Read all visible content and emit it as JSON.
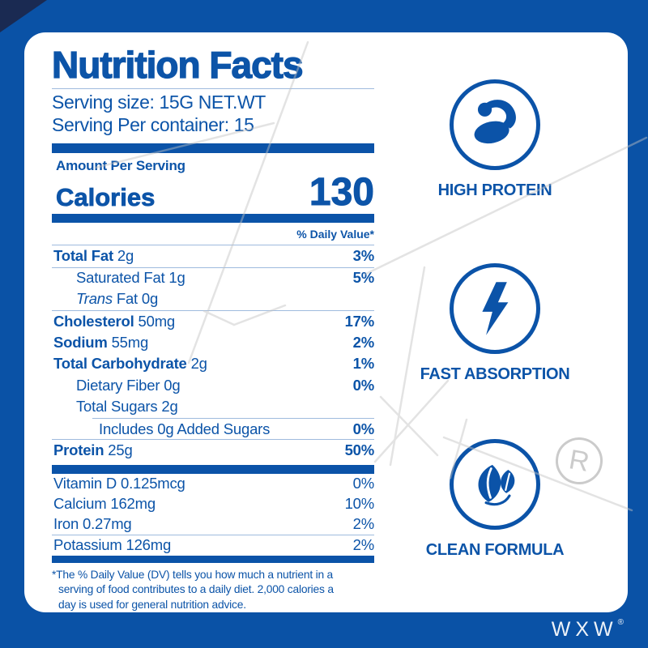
{
  "brand": {
    "logo": "WXW",
    "registered": "®"
  },
  "label": {
    "title": "Nutrition Facts",
    "serving_size": "Serving size: 15G NET.WT",
    "servings_per_container": "Serving Per container: 15",
    "amount_per_serving": "Amount Per Serving",
    "calories_label": "Calories",
    "calories_value": "130",
    "daily_value_header": "% Daily Value*",
    "rows": [
      {
        "segments": [
          {
            "text": "Total Fat",
            "style": "bold"
          },
          {
            "text": " 2g",
            "style": "regular"
          }
        ],
        "value": "3%",
        "value_bold": true,
        "indent": 0,
        "separator_before": "none"
      },
      {
        "segments": [
          {
            "text": "Saturated Fat 1g",
            "style": "regular"
          }
        ],
        "value": "5%",
        "value_bold": true,
        "indent": 1,
        "separator_before": "full"
      },
      {
        "segments": [
          {
            "text": "Trans",
            "style": "italic"
          },
          {
            "text": " Fat 0g",
            "style": "regular"
          }
        ],
        "value": "",
        "value_bold": false,
        "indent": 1,
        "separator_before": "none"
      },
      {
        "segments": [
          {
            "text": "Cholesterol",
            "style": "bold"
          },
          {
            "text": " 50mg",
            "style": "regular"
          }
        ],
        "value": "17%",
        "value_bold": true,
        "indent": 0,
        "separator_before": "full"
      },
      {
        "segments": [
          {
            "text": "Sodium",
            "style": "bold"
          },
          {
            "text": " 55mg",
            "style": "regular"
          }
        ],
        "value": "2%",
        "value_bold": true,
        "indent": 0,
        "separator_before": "none"
      },
      {
        "segments": [
          {
            "text": "Total Carbohydrate",
            "style": "bold"
          },
          {
            "text": " 2g",
            "style": "regular"
          }
        ],
        "value": "1%",
        "value_bold": true,
        "indent": 0,
        "separator_before": "none"
      },
      {
        "segments": [
          {
            "text": "Dietary Fiber 0g",
            "style": "regular"
          }
        ],
        "value": "0%",
        "value_bold": true,
        "indent": 1,
        "separator_before": "none"
      },
      {
        "segments": [
          {
            "text": "Total Sugars 2g",
            "style": "regular"
          }
        ],
        "value": "",
        "value_bold": false,
        "indent": 1,
        "separator_before": "none"
      },
      {
        "segments": [
          {
            "text": "Includes 0g Added Sugars",
            "style": "regular"
          }
        ],
        "value": "0%",
        "value_bold": true,
        "indent": 2,
        "separator_before": "indent"
      },
      {
        "segments": [
          {
            "text": "Protein",
            "style": "bold"
          },
          {
            "text": " 25g",
            "style": "regular"
          }
        ],
        "value": "50%",
        "value_bold": true,
        "indent": 0,
        "separator_before": "full"
      }
    ],
    "micronutrients": [
      {
        "segments": [
          {
            "text": "Vitamin D 0.125mcg",
            "style": "regular"
          }
        ],
        "value": "0%",
        "value_bold": false,
        "indent": 0,
        "separator_before": "none"
      },
      {
        "segments": [
          {
            "text": "Calcium 162mg",
            "style": "regular"
          }
        ],
        "value": "10%",
        "value_bold": false,
        "indent": 0,
        "separator_before": "none"
      },
      {
        "segments": [
          {
            "text": "Iron 0.27mg",
            "style": "regular"
          }
        ],
        "value": "2%",
        "value_bold": false,
        "indent": 0,
        "separator_before": "none"
      },
      {
        "segments": [
          {
            "text": "Potassium 126mg",
            "style": "regular"
          }
        ],
        "value": "2%",
        "value_bold": false,
        "indent": 0,
        "separator_before": "full"
      }
    ],
    "footnote_lines": [
      "*The % Daily Value (DV) tells you how much a nutrient in a",
      "serving of food contributes to a daily diet. 2,000 calories a",
      "day is used for general nutrition advice."
    ]
  },
  "features": [
    {
      "icon": "bicep-icon",
      "label": "HIGH PROTEIN"
    },
    {
      "icon": "lightning-icon",
      "label": "FAST ABSORPTION"
    },
    {
      "icon": "leaf-icon",
      "label": "CLEAN FORMULA"
    }
  ],
  "watermark": {
    "emblem_letter": "R"
  },
  "colors": {
    "primary_blue": "#0C54A8",
    "dark_navy": "#1A2A52",
    "divider_blue": "#9FBBDE",
    "watermark_gray": "#C2C2C2",
    "card_white": "#FFFFFF"
  }
}
